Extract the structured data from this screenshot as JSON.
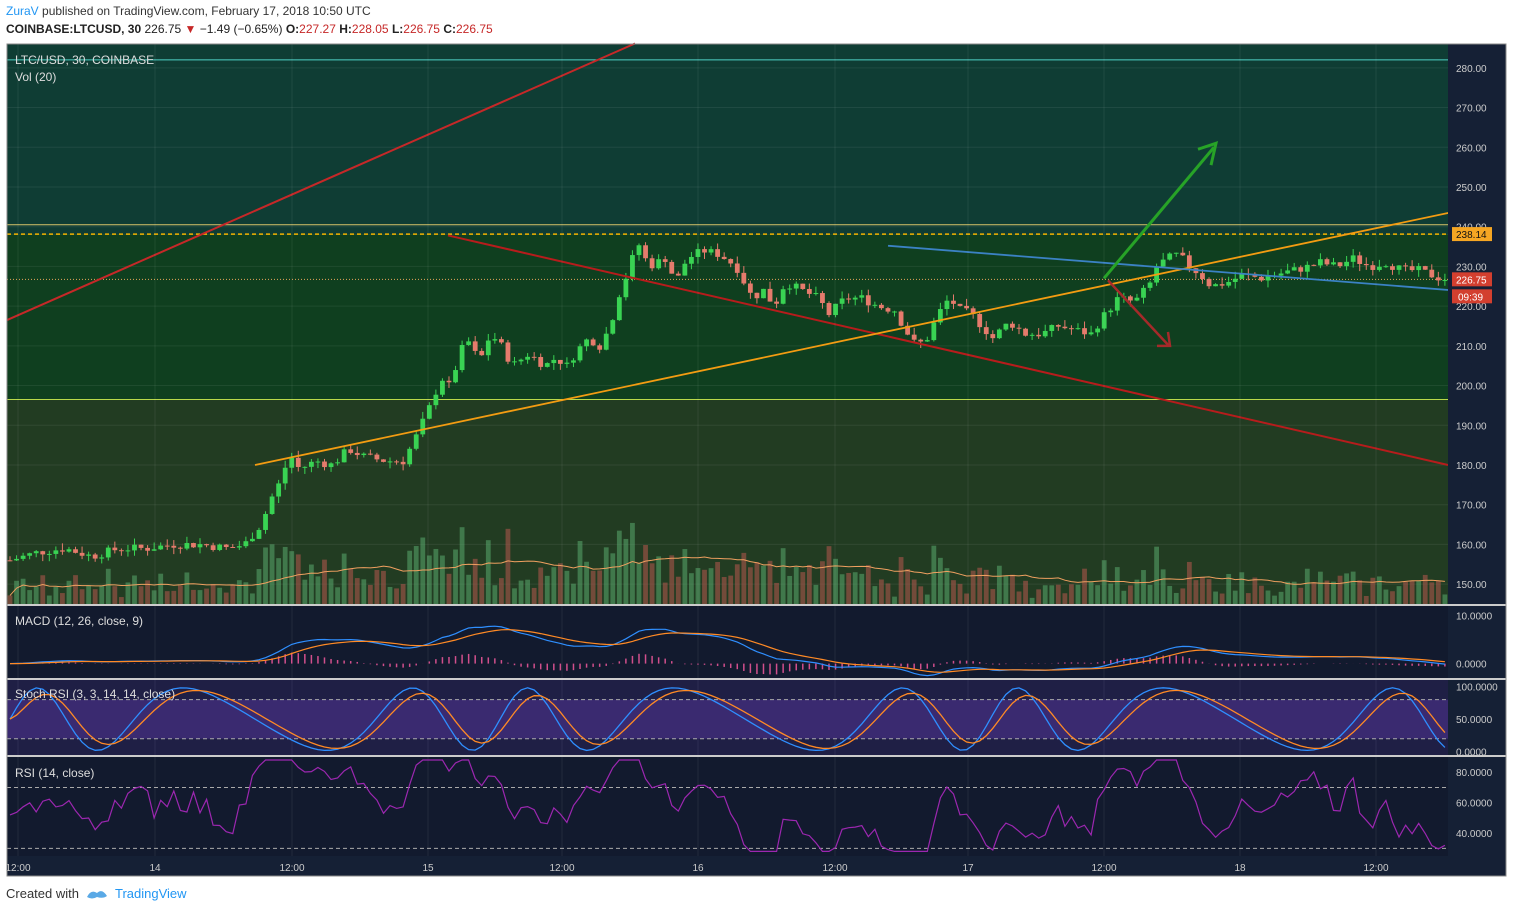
{
  "header": {
    "author": "ZuraV",
    "published_text": "published on TradingView.com, February 17, 2018 10:50 UTC",
    "symbol": "COINBASE:LTCUSD, 30",
    "price": "226.75",
    "change": "−1.49 (−0.65%)",
    "o_label": "O:",
    "o_value": "227.27",
    "h_label": "H:",
    "h_value": "228.05",
    "l_label": "L:",
    "l_value": "226.75",
    "c_label": "C:",
    "c_value": "226.75"
  },
  "panes": {
    "main_title": "LTC/USD, 30, COINBASE",
    "vol_title": "Vol (20)",
    "macd_title": "MACD (12, 26, close, 9)",
    "stoch_title": "Stoch RSI (3, 3, 14, 14, close)",
    "rsi_title": "RSI (14, close)"
  },
  "price_labels": {
    "resistance": "238.14",
    "last": "226.75",
    "countdown": "09:39"
  },
  "colors": {
    "bull": "#39d353",
    "bear": "#e57b6c",
    "tradingview_blue": "#2196f3"
  },
  "footer": {
    "created_with": "Created with",
    "brand": "TradingView"
  },
  "chart_data": [
    {
      "type": "candlestick",
      "title": "LTC/USD, 30, COINBASE",
      "y_ticks": [
        "150.00",
        "160.00",
        "170.00",
        "180.00",
        "190.00",
        "200.00",
        "210.00",
        "220.00",
        "230.00",
        "240.00",
        "250.00",
        "260.00",
        "270.00",
        "280.00"
      ],
      "x_ticks": [
        "12:00",
        "14",
        "12:00",
        "15",
        "12:00",
        "16",
        "12:00",
        "17",
        "12:00",
        "18",
        "12:00"
      ],
      "ylim": [
        145,
        286
      ],
      "close_path": [
        [
          0,
          156
        ],
        [
          0.5,
          158
        ],
        [
          1,
          159
        ],
        [
          1.5,
          157
        ],
        [
          2,
          159
        ],
        [
          2.5,
          159
        ],
        [
          3,
          160
        ],
        [
          3.5,
          160
        ],
        [
          4,
          159
        ],
        [
          4.3,
          160
        ],
        [
          4.6,
          165
        ],
        [
          4.8,
          172
        ],
        [
          5,
          177
        ],
        [
          5.1,
          183
        ],
        [
          5.3,
          179
        ],
        [
          5.6,
          181
        ],
        [
          5.9,
          180
        ],
        [
          6.2,
          184
        ],
        [
          6.5,
          182
        ],
        [
          6.9,
          181
        ],
        [
          7.2,
          181
        ],
        [
          7.4,
          186
        ],
        [
          7.7,
          195
        ],
        [
          7.9,
          202
        ],
        [
          8.1,
          199
        ],
        [
          8.2,
          208
        ],
        [
          8.4,
          211
        ],
        [
          8.6,
          206
        ],
        [
          8.8,
          213
        ],
        [
          9.0,
          210
        ],
        [
          9.2,
          205
        ],
        [
          9.5,
          208
        ],
        [
          9.8,
          205
        ],
        [
          10,
          207
        ],
        [
          10.2,
          205
        ],
        [
          10.4,
          209
        ],
        [
          10.6,
          212
        ],
        [
          10.8,
          210
        ],
        [
          11,
          215
        ],
        [
          11.1,
          221
        ],
        [
          11.3,
          228
        ],
        [
          11.5,
          236
        ],
        [
          11.7,
          230
        ],
        [
          12,
          232
        ],
        [
          12.2,
          226
        ],
        [
          12.4,
          232
        ],
        [
          12.7,
          234
        ],
        [
          13,
          233
        ],
        [
          13.3,
          230
        ],
        [
          13.6,
          222
        ],
        [
          13.8,
          224
        ],
        [
          14,
          220
        ],
        [
          14.2,
          226
        ],
        [
          14.5,
          224
        ],
        [
          14.8,
          222
        ],
        [
          15,
          218
        ],
        [
          15.3,
          222
        ],
        [
          15.6,
          222
        ],
        [
          15.9,
          220
        ],
        [
          16.2,
          219
        ],
        [
          16.4,
          214
        ],
        [
          16.6,
          210
        ],
        [
          16.8,
          212
        ],
        [
          17,
          218
        ],
        [
          17.2,
          222
        ],
        [
          17.4,
          219
        ],
        [
          17.6,
          218
        ],
        [
          17.8,
          215
        ],
        [
          18,
          212
        ],
        [
          18.3,
          216
        ],
        [
          18.6,
          213
        ],
        [
          18.9,
          213
        ],
        [
          19.2,
          215
        ],
        [
          19.5,
          214
        ],
        [
          19.8,
          213
        ],
        [
          20,
          217
        ],
        [
          20.3,
          222
        ],
        [
          20.6,
          221
        ],
        [
          20.9,
          226
        ],
        [
          21,
          230
        ],
        [
          21.2,
          232
        ],
        [
          21.4,
          233
        ],
        [
          21.6,
          230
        ],
        [
          21.8,
          228
        ],
        [
          22,
          225
        ],
        [
          22.3,
          226
        ],
        [
          22.6,
          228
        ],
        [
          22.9,
          227
        ],
        [
          23.2,
          228
        ],
        [
          23.5,
          229
        ],
        [
          23.8,
          230
        ],
        [
          24,
          231
        ],
        [
          24.3,
          230
        ],
        [
          24.6,
          232
        ],
        [
          24.9,
          230
        ],
        [
          25.2,
          231
        ],
        [
          25.5,
          229
        ],
        [
          25.8,
          229
        ],
        [
          26,
          228
        ],
        [
          26.2,
          227
        ],
        [
          26.4,
          226.75
        ]
      ],
      "volume_series": {
        "name": "Vol (20)"
      },
      "annotations": [
        {
          "label": "238.14",
          "type": "dashed-horizontal",
          "value": 238.14
        },
        {
          "label": "226.75",
          "type": "dotted-horizontal",
          "value": 226.75
        },
        {
          "type": "horizontal",
          "value": 282
        },
        {
          "type": "horizontal",
          "value": 196.5
        }
      ]
    },
    {
      "type": "line",
      "title": "MACD (12, 26, close, 9)",
      "y_ticks": [
        "10.0000",
        "0.0000"
      ],
      "ylim": [
        -3,
        12
      ]
    },
    {
      "type": "line",
      "title": "Stoch RSI (3, 3, 14, 14, close)",
      "y_ticks": [
        "100.0000",
        "50.0000",
        "0.0000"
      ],
      "ylim": [
        -5,
        110
      ]
    },
    {
      "type": "line",
      "title": "RSI (14, close)",
      "y_ticks": [
        "80.0000",
        "60.0000",
        "40.0000"
      ],
      "ylim": [
        25,
        90
      ],
      "bands": [
        70,
        30
      ]
    }
  ]
}
